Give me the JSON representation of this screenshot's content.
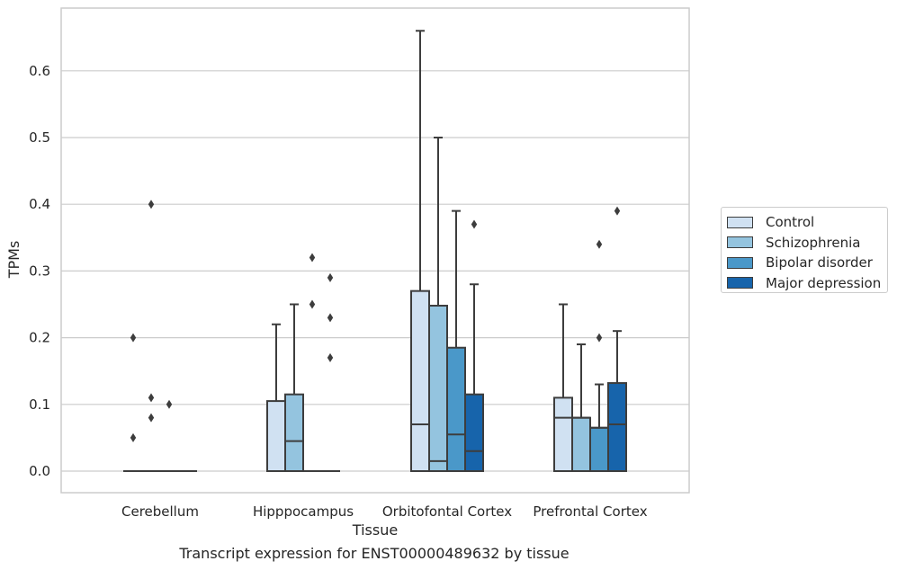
{
  "chart_data": {
    "type": "boxplot",
    "xlabel": "Tissue",
    "ylabel": "TPMs",
    "caption": "Transcript expression for ENST00000489632 by tissue",
    "ylim": [
      -0.033,
      0.695
    ],
    "yticks": [
      "0.0",
      "0.1",
      "0.2",
      "0.3",
      "0.4",
      "0.5",
      "0.6"
    ],
    "grid": true,
    "legend_position": "right",
    "categories": [
      "Cerebellum",
      "Hipppocampus",
      "Orbitofontal Cortex",
      "Prefrontal Cortex"
    ],
    "series": [
      {
        "name": "Control",
        "color": "#d0e1f2",
        "boxes": [
          {
            "min": 0,
            "q1": 0,
            "median": 0,
            "q3": 0,
            "max": 0,
            "outliers": [
              0.2,
              0.05
            ]
          },
          {
            "min": 0,
            "q1": 0,
            "median": 0,
            "q3": 0.105,
            "max": 0.22,
            "outliers": []
          },
          {
            "min": 0,
            "q1": 0,
            "median": 0.07,
            "q3": 0.27,
            "max": 0.66,
            "outliers": []
          },
          {
            "min": 0,
            "q1": 0,
            "median": 0.08,
            "q3": 0.11,
            "max": 0.25,
            "outliers": []
          }
        ]
      },
      {
        "name": "Schizophrenia",
        "color": "#94c4df",
        "boxes": [
          {
            "min": 0,
            "q1": 0,
            "median": 0,
            "q3": 0,
            "max": 0,
            "outliers": [
              0.4,
              0.11,
              0.08
            ]
          },
          {
            "min": 0,
            "q1": 0,
            "median": 0.045,
            "q3": 0.115,
            "max": 0.25,
            "outliers": []
          },
          {
            "min": 0,
            "q1": 0,
            "median": 0.015,
            "q3": 0.248,
            "max": 0.5,
            "outliers": []
          },
          {
            "min": 0,
            "q1": 0,
            "median": 0.08,
            "q3": 0.08,
            "max": 0.19,
            "outliers": []
          }
        ]
      },
      {
        "name": "Bipolar disorder",
        "color": "#4a98c9",
        "boxes": [
          {
            "min": 0,
            "q1": 0,
            "median": 0,
            "q3": 0,
            "max": 0,
            "outliers": [
              0.1
            ]
          },
          {
            "min": 0,
            "q1": 0,
            "median": 0,
            "q3": 0,
            "max": 0,
            "outliers": [
              0.32,
              0.25
            ]
          },
          {
            "min": 0,
            "q1": 0,
            "median": 0.055,
            "q3": 0.185,
            "max": 0.39,
            "outliers": []
          },
          {
            "min": 0,
            "q1": 0,
            "median": 0.065,
            "q3": 0.065,
            "max": 0.13,
            "outliers": [
              0.34,
              0.2
            ]
          }
        ]
      },
      {
        "name": "Major depression",
        "color": "#1764ab",
        "boxes": [
          {
            "min": 0,
            "q1": 0,
            "median": 0,
            "q3": 0,
            "max": 0,
            "outliers": []
          },
          {
            "min": 0,
            "q1": 0,
            "median": 0,
            "q3": 0,
            "max": 0,
            "outliers": [
              0.29,
              0.23,
              0.17
            ]
          },
          {
            "min": 0,
            "q1": 0,
            "median": 0.03,
            "q3": 0.115,
            "max": 0.28,
            "outliers": [
              0.37
            ]
          },
          {
            "min": 0,
            "q1": 0,
            "median": 0.07,
            "q3": 0.132,
            "max": 0.21,
            "outliers": [
              0.39
            ]
          }
        ]
      }
    ]
  }
}
